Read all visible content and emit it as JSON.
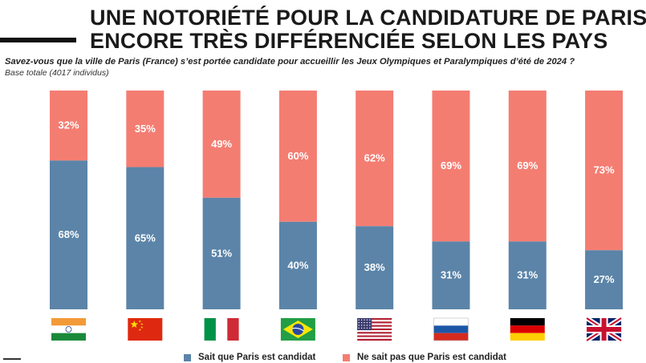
{
  "header": {
    "title_line1": "UNE NOTORIÉTÉ POUR LA CANDIDATURE DE PARIS",
    "title_line2": "ENCORE TRÈS DIFFÉRENCIÉE SELON LES PAYS",
    "question": "Savez-vous que la ville de Paris (France) s’est portée candidate pour accueillir les Jeux Olympiques et Paralympiques d’été de 2024 ?",
    "base": "Base totale (4017 individus)"
  },
  "colors": {
    "knows": "#5b84a8",
    "not_knows": "#f47d72"
  },
  "chart_data": {
    "type": "bar",
    "stacked": true,
    "categories": [
      "India",
      "China",
      "Italy",
      "Brazil",
      "USA",
      "Russia",
      "Germany",
      "United Kingdom"
    ],
    "category_display": "flags",
    "series": [
      {
        "name": "Sait que Paris est candidat",
        "values": [
          68,
          65,
          51,
          40,
          38,
          31,
          31,
          27
        ],
        "labels": [
          "68%",
          "65%",
          "51%",
          "40%",
          "38%",
          "31%",
          "31%",
          "27%"
        ]
      },
      {
        "name": "Ne sait pas que Paris est candidat",
        "values": [
          32,
          35,
          49,
          60,
          62,
          69,
          69,
          73
        ],
        "labels": [
          "32%",
          "35%",
          "49%",
          "60%",
          "62%",
          "69%",
          "69%",
          "73%"
        ]
      }
    ],
    "ylim": [
      0,
      100
    ],
    "grid": false,
    "legend_position": "bottom"
  },
  "flags": [
    "india-flag-icon",
    "china-flag-icon",
    "italy-flag-icon",
    "brazil-flag-icon",
    "usa-flag-icon",
    "russia-flag-icon",
    "germany-flag-icon",
    "uk-flag-icon"
  ],
  "legend": {
    "knows_label": "Sait que Paris est candidat",
    "not_knows_label": "Ne sait pas que Paris est candidat"
  }
}
